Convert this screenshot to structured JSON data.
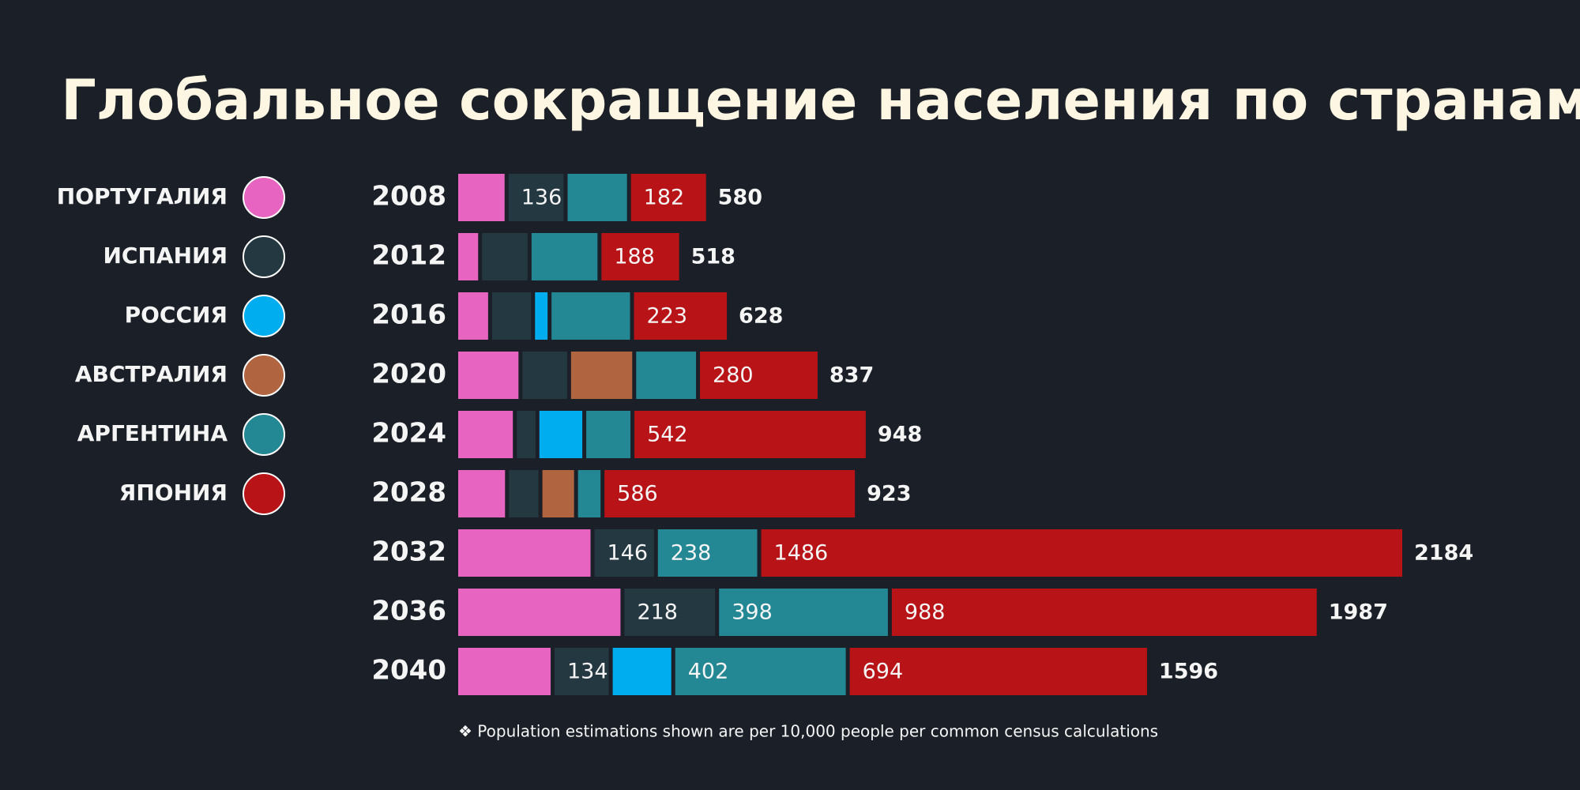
{
  "chart_data": {
    "type": "stacked_barh",
    "title": "Глобальное сокращение населения по странам",
    "categories": [
      "2008",
      "2012",
      "2016",
      "2020",
      "2024",
      "2028",
      "2032",
      "2036",
      "2040"
    ],
    "series": [
      {
        "name": "ПОРТУГАЛИЯ",
        "color": "#e765c0",
        "values": [
          116,
          55,
          78,
          148,
          135,
          117,
          314,
          383,
          222
        ],
        "value_labels": [
          null,
          null,
          null,
          null,
          null,
          null,
          null,
          null,
          null
        ]
      },
      {
        "name": "ИСПАНИЯ",
        "color": "#243842",
        "values": [
          136,
          114,
          99,
          112,
          52,
          77,
          146,
          218,
          134
        ],
        "value_labels": [
          "136",
          null,
          null,
          null,
          null,
          null,
          "146",
          "218",
          "134"
        ]
      },
      {
        "name": "РОССИЯ",
        "color": "#00aeef",
        "values": [
          null,
          null,
          38,
          null,
          108,
          null,
          null,
          null,
          144
        ],
        "value_labels": [
          null,
          null,
          null,
          null,
          null,
          null,
          null,
          null,
          null
        ]
      },
      {
        "name": "АВСТРАЛИЯ",
        "color": "#b0643f",
        "values": [
          null,
          null,
          null,
          150,
          null,
          82,
          null,
          null,
          null
        ],
        "value_labels": [
          null,
          null,
          null,
          null,
          null,
          null,
          null,
          null,
          null
        ]
      },
      {
        "name": "АРГЕНТИНА",
        "color": "#238794",
        "values": [
          146,
          161,
          190,
          147,
          111,
          61,
          238,
          398,
          402
        ],
        "value_labels": [
          null,
          null,
          null,
          null,
          null,
          null,
          "238",
          "398",
          "402"
        ]
      },
      {
        "name": "ЯПОНИЯ",
        "color": "#b81316",
        "values": [
          182,
          188,
          223,
          280,
          542,
          586,
          1486,
          988,
          694
        ],
        "value_labels": [
          "182",
          "188",
          "223",
          "280",
          "542",
          "586",
          "1486",
          "988",
          "694"
        ]
      }
    ],
    "totals": [
      580,
      518,
      628,
      837,
      948,
      923,
      2184,
      1987,
      1596
    ],
    "xlim": [
      0,
      2184
    ],
    "note": "❖ Population estimations shown are per 10,000 people per common census calculations"
  }
}
